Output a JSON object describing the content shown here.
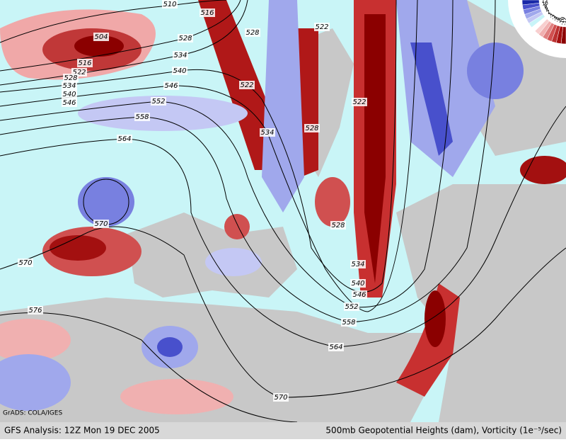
{
  "title_left": "GFS Analysis: 12Z Mon 19 DEC 2005",
  "title_right": "500mb Geopotential Heights (dam), Vorticity (1e⁻⁵/sec)",
  "credit": "GrADS: COLA/IGES",
  "contour_labels": [
    510,
    516,
    504,
    516,
    522,
    528,
    534,
    540,
    546,
    528,
    534,
    540,
    546,
    552,
    558,
    564,
    570,
    570,
    576,
    528,
    522,
    522,
    534,
    528,
    522,
    528,
    534,
    540,
    546,
    552,
    558,
    564,
    570
  ],
  "colorbar": {
    "labels": [
      12,
      10,
      8,
      6,
      4,
      2,
      1,
      -1,
      -2,
      -4,
      -6,
      -8,
      -10,
      -12
    ],
    "colors": [
      "#8b0000",
      "#a31010",
      "#bb3030",
      "#d05050",
      "#e08080",
      "#f0b0b0",
      "#f8cfcf",
      "#ffffff",
      "#c8f4f8",
      "#c4c8f4",
      "#a0a8ec",
      "#7880e0",
      "#4850cc",
      "#1828a8"
    ]
  }
}
